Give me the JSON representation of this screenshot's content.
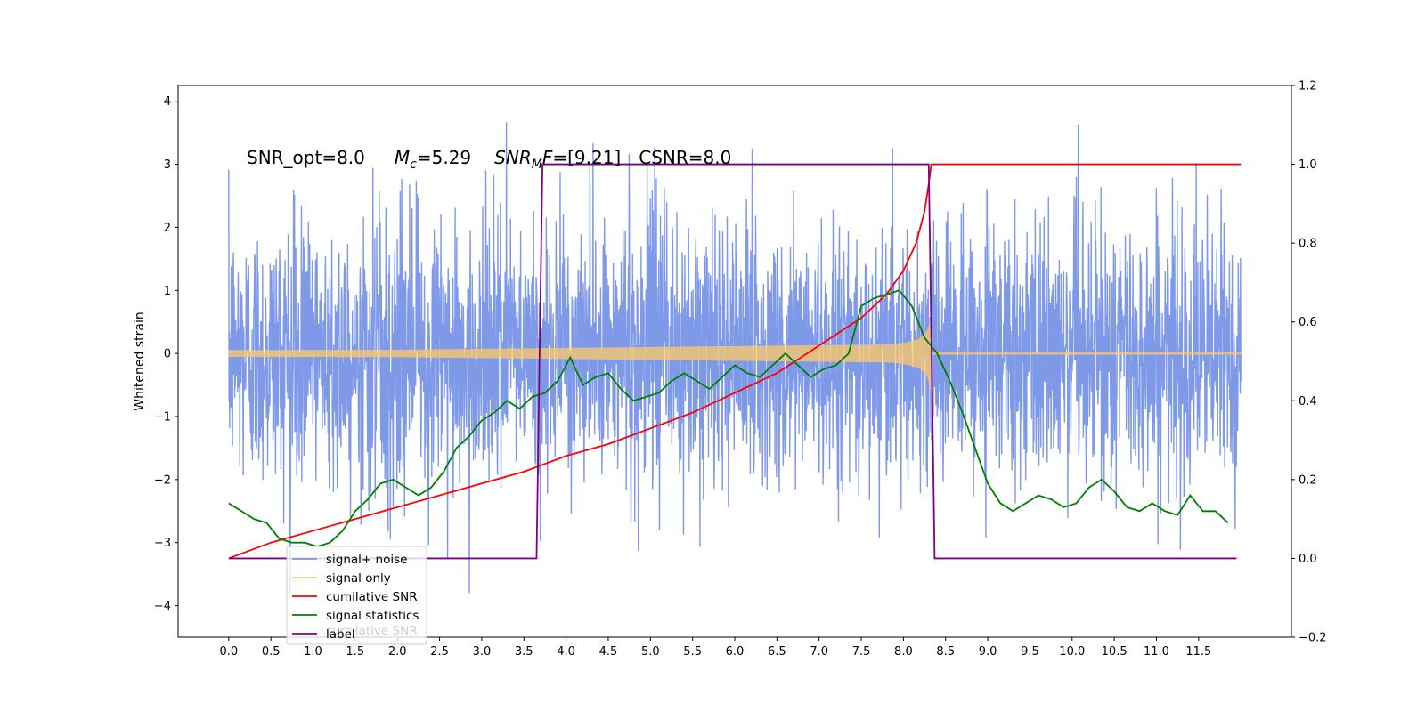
{
  "chart_data": {
    "type": "line",
    "title": "",
    "xlabel": "",
    "ylabel": "Whitened strain",
    "xlim": [
      -0.6,
      12.6
    ],
    "ylim": [
      -4.5,
      4.25
    ],
    "ylim_right": [
      -0.2,
      1.2
    ],
    "x_ticks": [
      "0.0",
      "0.5",
      "1.0",
      "1.5",
      "2.0",
      "2.5",
      "3.0",
      "3.5",
      "4.0",
      "4.5",
      "5.0",
      "5.5",
      "6.0",
      "6.5",
      "7.0",
      "7.5",
      "8.0",
      "8.5",
      "9.0",
      "9.5",
      "10.0",
      "10.5",
      "11.0",
      "11.5"
    ],
    "y_ticks": [
      "4",
      "3",
      "2",
      "1",
      "0",
      "−1",
      "−2",
      "−3",
      "−4"
    ],
    "y_ticks_right": [
      "1.2",
      "1.0",
      "0.8",
      "0.6",
      "0.4",
      "0.2",
      "0.0",
      "−0.2"
    ],
    "annotation": {
      "snr_opt": "SNR_opt=8.0",
      "mc_pre": "M",
      "mc_sub": "c",
      "mc_val": "=5.29",
      "snrmf_pre": "SNR",
      "snrmf_sub": "M",
      "snrmf_mid": "F",
      "snrmf_val": "=[9.21]",
      "csnr": "CSNR=8.0"
    },
    "legend": {
      "placement": "lower-left",
      "entries": [
        {
          "label": "signal+ noise",
          "color": "#7893e8"
        },
        {
          "label": "signal only",
          "color": "#ffc966"
        },
        {
          "label": "cumilative SNR",
          "color": "#ff0000"
        },
        {
          "label": "signal statistics",
          "color": "#008000"
        },
        {
          "label": "label",
          "color": "#800080"
        }
      ],
      "ghost_text": "cumilative SNR"
    },
    "series": [
      {
        "name": "signal+ noise",
        "axis": "left",
        "color": "#7893e8",
        "x_range": [
          0,
          12
        ],
        "amplitude_envelope": [
          -4.1,
          3.85
        ],
        "description": "dense noise"
      },
      {
        "name": "signal only",
        "axis": "left",
        "color": "#ffc966",
        "chirp": {
          "start": 0.0,
          "merger": 8.33,
          "end": 12.0,
          "amp_start": 0.03,
          "amp_merger": 0.7
        }
      },
      {
        "name": "cumilative SNR",
        "axis": "right",
        "color": "#ff0000",
        "x": [
          0.0,
          0.5,
          1.0,
          1.5,
          2.0,
          2.5,
          3.0,
          3.5,
          4.0,
          4.5,
          5.0,
          5.5,
          6.0,
          6.5,
          7.0,
          7.5,
          7.8,
          8.0,
          8.15,
          8.25,
          8.3,
          8.33,
          12.0
        ],
        "y": [
          0.0,
          0.04,
          0.07,
          0.1,
          0.13,
          0.16,
          0.19,
          0.22,
          0.26,
          0.29,
          0.33,
          0.37,
          0.42,
          0.47,
          0.54,
          0.61,
          0.67,
          0.73,
          0.8,
          0.88,
          0.95,
          1.0,
          1.0
        ]
      },
      {
        "name": "signal statistics",
        "axis": "right",
        "color": "#008000",
        "x": [
          0.0,
          0.15,
          0.3,
          0.45,
          0.6,
          0.75,
          0.9,
          1.05,
          1.2,
          1.35,
          1.5,
          1.65,
          1.8,
          1.95,
          2.1,
          2.25,
          2.4,
          2.55,
          2.7,
          2.85,
          3.0,
          3.15,
          3.3,
          3.45,
          3.6,
          3.75,
          3.9,
          4.05,
          4.2,
          4.35,
          4.5,
          4.65,
          4.8,
          4.95,
          5.1,
          5.25,
          5.4,
          5.55,
          5.7,
          5.85,
          6.0,
          6.15,
          6.3,
          6.45,
          6.6,
          6.75,
          6.9,
          7.05,
          7.2,
          7.35,
          7.5,
          7.65,
          7.8,
          7.95,
          8.1,
          8.25,
          8.4,
          8.55,
          8.7,
          8.85,
          9.0,
          9.15,
          9.3,
          9.45,
          9.6,
          9.75,
          9.9,
          10.05,
          10.2,
          10.35,
          10.5,
          10.65,
          10.8,
          10.95,
          11.1,
          11.25,
          11.4,
          11.55,
          11.7,
          11.85
        ],
        "y": [
          0.14,
          0.12,
          0.1,
          0.09,
          0.05,
          0.04,
          0.04,
          0.03,
          0.04,
          0.07,
          0.12,
          0.15,
          0.19,
          0.2,
          0.18,
          0.16,
          0.18,
          0.22,
          0.28,
          0.31,
          0.35,
          0.37,
          0.4,
          0.38,
          0.41,
          0.42,
          0.45,
          0.51,
          0.44,
          0.46,
          0.47,
          0.43,
          0.4,
          0.41,
          0.42,
          0.45,
          0.47,
          0.45,
          0.43,
          0.46,
          0.49,
          0.47,
          0.46,
          0.49,
          0.52,
          0.49,
          0.46,
          0.48,
          0.49,
          0.52,
          0.64,
          0.66,
          0.67,
          0.68,
          0.64,
          0.56,
          0.52,
          0.45,
          0.37,
          0.28,
          0.19,
          0.14,
          0.12,
          0.14,
          0.16,
          0.15,
          0.13,
          0.14,
          0.18,
          0.2,
          0.17,
          0.13,
          0.12,
          0.14,
          0.12,
          0.11,
          0.16,
          0.12,
          0.12,
          0.09
        ]
      },
      {
        "name": "label",
        "axis": "right",
        "color": "#800080",
        "x": [
          0.0,
          3.65,
          3.72,
          8.3,
          8.37,
          11.95
        ],
        "y": [
          0.0,
          0.0,
          1.0,
          1.0,
          0.0,
          0.0
        ]
      }
    ]
  }
}
